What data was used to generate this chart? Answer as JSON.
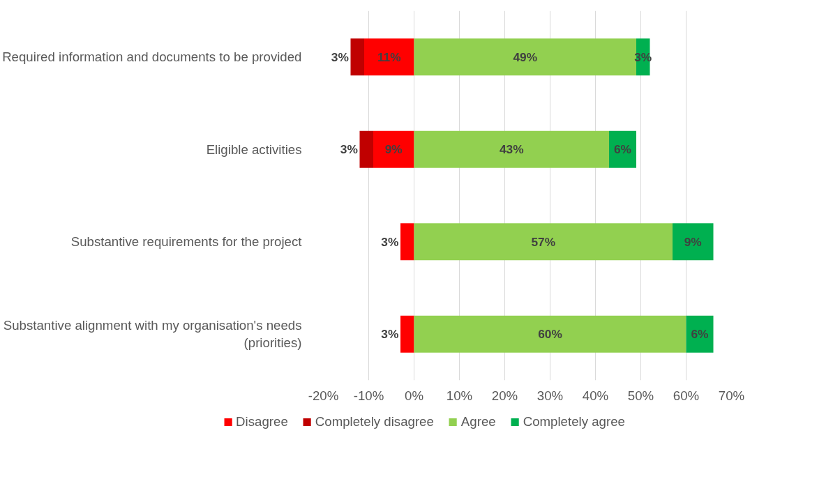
{
  "chart_data": {
    "type": "bar",
    "orientation": "horizontal",
    "categories": [
      "Required information and documents to be provided",
      "Eligible activities",
      "Substantive requirements for the project",
      "Substantive alignment with my organisation's needs (priorities)"
    ],
    "series": [
      {
        "name": "Disagree",
        "color": "#ff0000",
        "values": [
          11,
          9,
          3,
          3
        ],
        "base": [
          -11,
          -9,
          -3,
          -3
        ],
        "value_labels": [
          "11%",
          "9%",
          "3%",
          "3%"
        ]
      },
      {
        "name": "Completely disagree",
        "color": "#c00000",
        "values": [
          3,
          3,
          null,
          null
        ],
        "base": [
          -14,
          -12,
          null,
          null
        ],
        "value_labels": [
          "3%",
          "3%",
          null,
          null
        ]
      },
      {
        "name": "Agree",
        "color": "#92d050",
        "values": [
          49,
          43,
          57,
          60
        ],
        "base": [
          0,
          0,
          0,
          0
        ],
        "value_labels": [
          "49%",
          "43%",
          "57%",
          "60%"
        ]
      },
      {
        "name": "Completely agree",
        "color": "#00b050",
        "values": [
          3,
          6,
          9,
          6
        ],
        "base": [
          49,
          43,
          57,
          60
        ],
        "value_labels": [
          "3%",
          "6%",
          "9%",
          "6%"
        ]
      }
    ],
    "xlim": [
      -20,
      70
    ],
    "xticks": [
      {
        "value": -20,
        "label": "-20%"
      },
      {
        "value": -10,
        "label": "-10%"
      },
      {
        "value": 0,
        "label": "0%"
      },
      {
        "value": 10,
        "label": "10%"
      },
      {
        "value": 20,
        "label": "20%"
      },
      {
        "value": 30,
        "label": "30%"
      },
      {
        "value": 40,
        "label": "40%"
      },
      {
        "value": 50,
        "label": "50%"
      },
      {
        "value": 60,
        "label": "60%"
      },
      {
        "value": 70,
        "label": "70%"
      }
    ],
    "grid": "x",
    "legend": "bottom"
  }
}
